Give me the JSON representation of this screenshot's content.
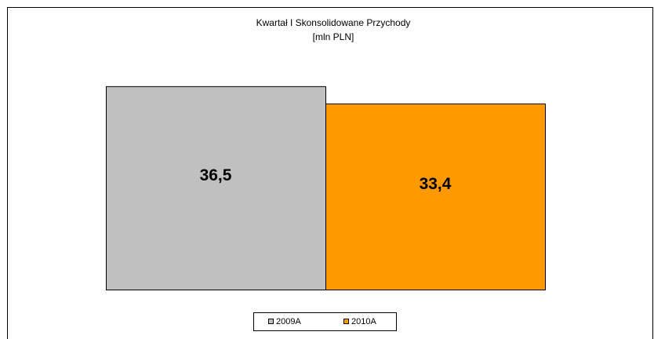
{
  "chart_data": {
    "type": "bar",
    "title": "Kwartał I Skonsolidowane Przychody",
    "subtitle": "[mln PLN]",
    "categories": [
      null
    ],
    "series": [
      {
        "name": "2009A",
        "color": "#c0c0c0",
        "values": [
          36.5
        ],
        "value_labels": [
          "36,5"
        ]
      },
      {
        "name": "2010A",
        "color": "#ff9900",
        "values": [
          33.4
        ],
        "value_labels": [
          "33,4"
        ]
      }
    ],
    "ylim": [
      0,
      40
    ],
    "legend": "bottom"
  }
}
